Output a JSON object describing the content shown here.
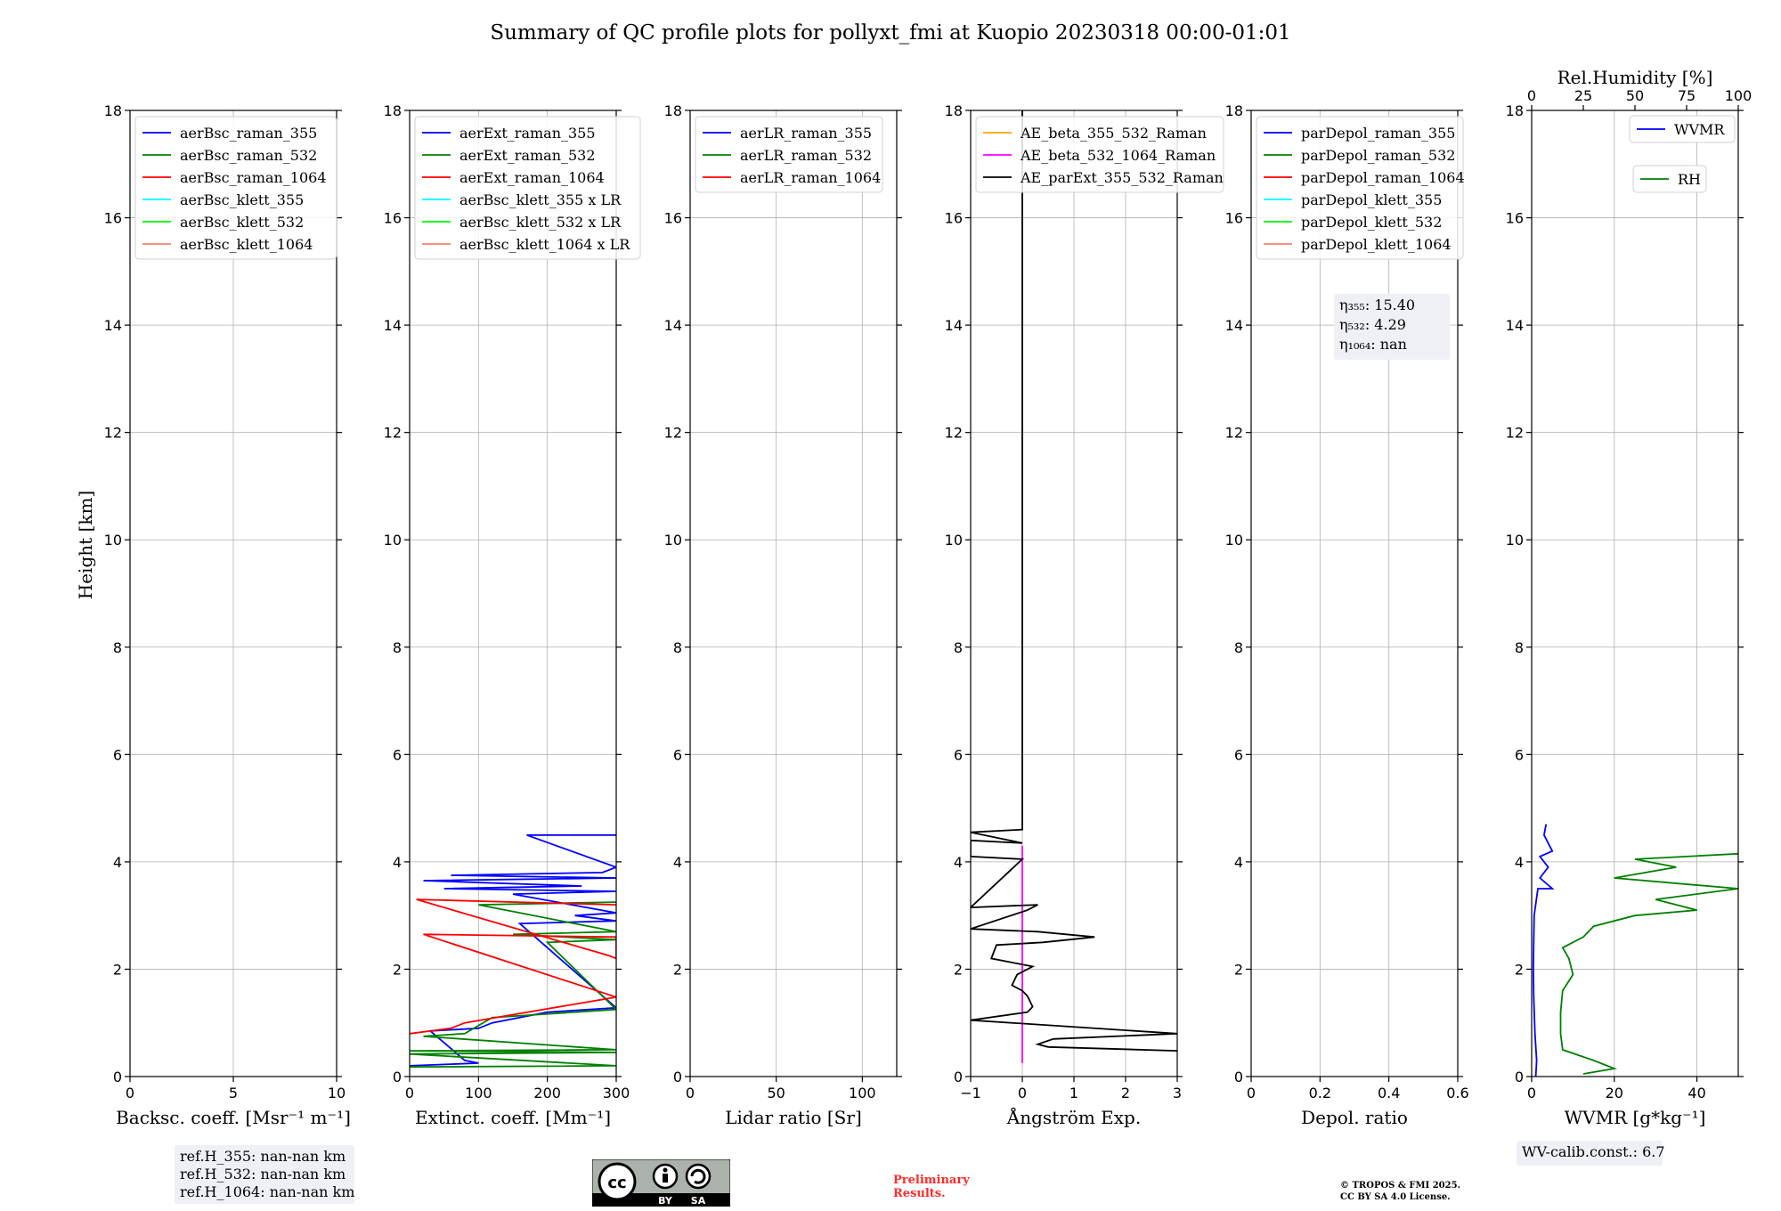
{
  "title": "Summary of QC profile plots for pollyxt_fmi at Kuopio 20230318 00:00-01:01",
  "y_label": "Height [km]",
  "footer": {
    "preliminary_line1": "Preliminary",
    "preliminary_line2": "Results.",
    "copyright_line1": "© TROPOS & FMI 2025.",
    "copyright_line2": "CC BY SA 4.0 License.",
    "cc_badge_left": "BY",
    "cc_badge_right": "SA"
  },
  "colors": {
    "blue": "#0000ff",
    "green": "#008000",
    "red": "#ff0000",
    "cyan": "#00ffff",
    "lime": "#00ff00",
    "salmon": "#fa8072",
    "orange": "#ffa500",
    "magenta": "#ff00ff",
    "black": "#000000"
  },
  "chart_data": [
    {
      "id": "backscatter",
      "type": "line",
      "xlabel": "Backsc. coeff. [Msr⁻¹ m⁻¹]",
      "ylabel": "Height [km]",
      "xlim": [
        0,
        10
      ],
      "ylim": [
        0,
        18
      ],
      "xticks": [
        0,
        5,
        10
      ],
      "yticks": [
        0,
        2,
        4,
        6,
        8,
        10,
        12,
        14,
        16,
        18
      ],
      "grid": true,
      "legend_position": "upper left",
      "series": [
        {
          "name": "aerBsc_raman_355",
          "color": "#0000ff",
          "points": []
        },
        {
          "name": "aerBsc_raman_532",
          "color": "#008000",
          "points": []
        },
        {
          "name": "aerBsc_raman_1064",
          "color": "#ff0000",
          "points": []
        },
        {
          "name": "aerBsc_klett_355",
          "color": "#00ffff",
          "points": []
        },
        {
          "name": "aerBsc_klett_532",
          "color": "#00ff00",
          "points": []
        },
        {
          "name": "aerBsc_klett_1064",
          "color": "#fa8072",
          "points": []
        }
      ],
      "annotation": [
        "ref.H_355: nan-nan km",
        "ref.H_532: nan-nan km",
        "ref.H_1064: nan-nan km"
      ]
    },
    {
      "id": "extinction",
      "type": "line",
      "xlabel": "Extinct. coeff. [Mm⁻¹]",
      "xlim": [
        0,
        300
      ],
      "ylim": [
        0,
        18
      ],
      "xticks": [
        0,
        100,
        200,
        300
      ],
      "yticks": [
        0,
        2,
        4,
        6,
        8,
        10,
        12,
        14,
        16,
        18
      ],
      "grid": true,
      "legend_position": "upper left",
      "series": [
        {
          "name": "aerExt_raman_355",
          "color": "#0000ff",
          "points": [
            [
              0,
              0.2
            ],
            [
              100,
              0.25
            ],
            [
              80,
              0.3
            ],
            [
              30,
              0.85
            ],
            [
              100,
              0.9
            ],
            [
              120,
              1.0
            ],
            [
              200,
              1.2
            ],
            [
              300,
              1.28
            ],
            [
              160,
              2.85
            ],
            [
              300,
              2.9
            ],
            [
              240,
              3.0
            ],
            [
              300,
              3.05
            ],
            [
              150,
              3.4
            ],
            [
              300,
              3.45
            ],
            [
              50,
              3.5
            ],
            [
              250,
              3.55
            ],
            [
              20,
              3.65
            ],
            [
              300,
              3.7
            ],
            [
              60,
              3.75
            ],
            [
              280,
              3.8
            ],
            [
              300,
              3.9
            ],
            [
              170,
              4.5
            ],
            [
              300,
              4.5
            ]
          ]
        },
        {
          "name": "aerExt_raman_532",
          "color": "#008000",
          "points": [
            [
              0,
              0.18
            ],
            [
              300,
              0.2
            ],
            [
              0,
              0.42
            ],
            [
              300,
              0.45
            ],
            [
              0,
              0.48
            ],
            [
              300,
              0.5
            ],
            [
              20,
              0.75
            ],
            [
              80,
              0.8
            ],
            [
              120,
              1.1
            ],
            [
              300,
              1.25
            ],
            [
              200,
              2.5
            ],
            [
              300,
              2.55
            ],
            [
              150,
              2.65
            ],
            [
              300,
              2.7
            ],
            [
              100,
              3.2
            ],
            [
              300,
              3.25
            ]
          ]
        },
        {
          "name": "aerExt_raman_1064",
          "color": "#ff0000",
          "points": [
            [
              0,
              0.8
            ],
            [
              60,
              0.9
            ],
            [
              80,
              1.0
            ],
            [
              300,
              1.48
            ],
            [
              20,
              2.65
            ],
            [
              300,
              2.6
            ],
            [
              300,
              2.2
            ],
            [
              290,
              2.25
            ],
            [
              10,
              3.3
            ],
            [
              300,
              3.2
            ]
          ]
        },
        {
          "name": "aerBsc_klett_355 x LR",
          "color": "#00ffff",
          "points": []
        },
        {
          "name": "aerBsc_klett_532 x LR",
          "color": "#00ff00",
          "points": []
        },
        {
          "name": "aerBsc_klett_1064 x LR",
          "color": "#fa8072",
          "points": []
        }
      ]
    },
    {
      "id": "lidar_ratio",
      "type": "line",
      "xlabel": "Lidar ratio [Sr]",
      "xlim": [
        0,
        120
      ],
      "ylim": [
        0,
        18
      ],
      "xticks": [
        0,
        50,
        100
      ],
      "yticks": [
        0,
        2,
        4,
        6,
        8,
        10,
        12,
        14,
        16,
        18
      ],
      "grid": true,
      "legend_position": "upper left",
      "series": [
        {
          "name": "aerLR_raman_355",
          "color": "#0000ff",
          "points": []
        },
        {
          "name": "aerLR_raman_532",
          "color": "#008000",
          "points": []
        },
        {
          "name": "aerLR_raman_1064",
          "color": "#ff0000",
          "points": []
        }
      ]
    },
    {
      "id": "angstrom",
      "type": "line",
      "xlabel": "Ångström Exp.",
      "xlim": [
        -1,
        3
      ],
      "ylim": [
        0,
        18
      ],
      "xticks": [
        -1,
        0,
        1,
        2,
        3
      ],
      "yticks": [
        0,
        2,
        4,
        6,
        8,
        10,
        12,
        14,
        16,
        18
      ],
      "grid": true,
      "legend_position": "upper left",
      "series": [
        {
          "name": "AE_beta_355_532_Raman",
          "color": "#ffa500",
          "points": []
        },
        {
          "name": "AE_beta_532_1064_Raman",
          "color": "#ff00ff",
          "points": [
            [
              0,
              0.25
            ],
            [
              0,
              4.3
            ]
          ]
        },
        {
          "name": "AE_parExt_355_532_Raman",
          "color": "#000000",
          "points": [
            [
              3,
              0.48
            ],
            [
              0.5,
              0.55
            ],
            [
              0.3,
              0.6
            ],
            [
              0.6,
              0.7
            ],
            [
              3,
              0.8
            ],
            [
              -1,
              1.05
            ],
            [
              0.1,
              1.2
            ],
            [
              0.2,
              1.3
            ],
            [
              0.1,
              1.5
            ],
            [
              0,
              1.6
            ],
            [
              -0.2,
              1.7
            ],
            [
              -0.1,
              1.9
            ],
            [
              0.2,
              2.05
            ],
            [
              -0.6,
              2.2
            ],
            [
              -0.5,
              2.45
            ],
            [
              0.4,
              2.5
            ],
            [
              1.4,
              2.6
            ],
            [
              0.3,
              2.7
            ],
            [
              -1,
              2.75
            ],
            [
              0.1,
              3.1
            ],
            [
              0.3,
              3.2
            ],
            [
              -1,
              3.15
            ],
            [
              0,
              4.05
            ],
            [
              -1,
              4.1
            ],
            [
              -1,
              4.4
            ],
            [
              0,
              4.35
            ],
            [
              -1,
              4.55
            ],
            [
              0,
              4.6
            ],
            [
              0,
              18
            ]
          ]
        }
      ]
    },
    {
      "id": "depol",
      "type": "line",
      "xlabel": "Depol. ratio",
      "xlim": [
        0,
        0.6
      ],
      "ylim": [
        0,
        18
      ],
      "xticks": [
        0.0,
        0.2,
        0.4,
        0.6
      ],
      "yticks": [
        0,
        2,
        4,
        6,
        8,
        10,
        12,
        14,
        16,
        18
      ],
      "grid": true,
      "legend_position": "upper left",
      "series": [
        {
          "name": "parDepol_raman_355",
          "color": "#0000ff",
          "points": []
        },
        {
          "name": "parDepol_raman_532",
          "color": "#008000",
          "points": []
        },
        {
          "name": "parDepol_raman_1064",
          "color": "#ff0000",
          "points": []
        },
        {
          "name": "parDepol_klett_355",
          "color": "#00ffff",
          "points": []
        },
        {
          "name": "parDepol_klett_532",
          "color": "#00ff00",
          "points": []
        },
        {
          "name": "parDepol_klett_1064",
          "color": "#fa8072",
          "points": []
        }
      ],
      "annotation": [
        "η₃₅₅: 15.40",
        "η₅₃₂: 4.29",
        "η₁₀₆₄: nan"
      ]
    },
    {
      "id": "wvmr",
      "type": "line",
      "xlabel": "WVMR [g*kg⁻¹]",
      "x2label": "Rel.Humidity [%]",
      "xlim": [
        0,
        50
      ],
      "x2lim": [
        0,
        100
      ],
      "ylim": [
        0,
        18
      ],
      "xticks": [
        0,
        20,
        40
      ],
      "x2ticks": [
        0,
        25,
        50,
        75,
        100
      ],
      "yticks": [
        0,
        2,
        4,
        6,
        8,
        10,
        12,
        14,
        16,
        18
      ],
      "grid": true,
      "legend_position": "upper right",
      "series": [
        {
          "name": "WVMR",
          "color": "#0000ff",
          "points": [
            [
              1,
              0
            ],
            [
              1.2,
              0.3
            ],
            [
              0.8,
              0.8
            ],
            [
              0.5,
              1.5
            ],
            [
              0.4,
              2.0
            ],
            [
              0.5,
              2.5
            ],
            [
              0.6,
              3.0
            ],
            [
              1.5,
              3.5
            ],
            [
              5,
              3.5
            ],
            [
              2,
              3.7
            ],
            [
              4,
              3.9
            ],
            [
              2,
              4.1
            ],
            [
              5,
              4.2
            ],
            [
              3,
              4.5
            ],
            [
              3.5,
              4.7
            ]
          ]
        },
        {
          "name": "RH",
          "axis": "x2",
          "color": "#008000",
          "points": [
            [
              25,
              0.05
            ],
            [
              40,
              0.15
            ],
            [
              30,
              0.3
            ],
            [
              15,
              0.5
            ],
            [
              14,
              0.8
            ],
            [
              14,
              1.2
            ],
            [
              15,
              1.6
            ],
            [
              20,
              1.9
            ],
            [
              18,
              2.2
            ],
            [
              15,
              2.4
            ],
            [
              25,
              2.6
            ],
            [
              30,
              2.8
            ],
            [
              50,
              3.0
            ],
            [
              80,
              3.1
            ],
            [
              60,
              3.3
            ],
            [
              100,
              3.5
            ],
            [
              40,
              3.7
            ],
            [
              70,
              3.9
            ],
            [
              50,
              4.05
            ],
            [
              100,
              4.15
            ]
          ]
        }
      ],
      "annotation": [
        "WV-calib.const.: 6.7"
      ]
    }
  ]
}
